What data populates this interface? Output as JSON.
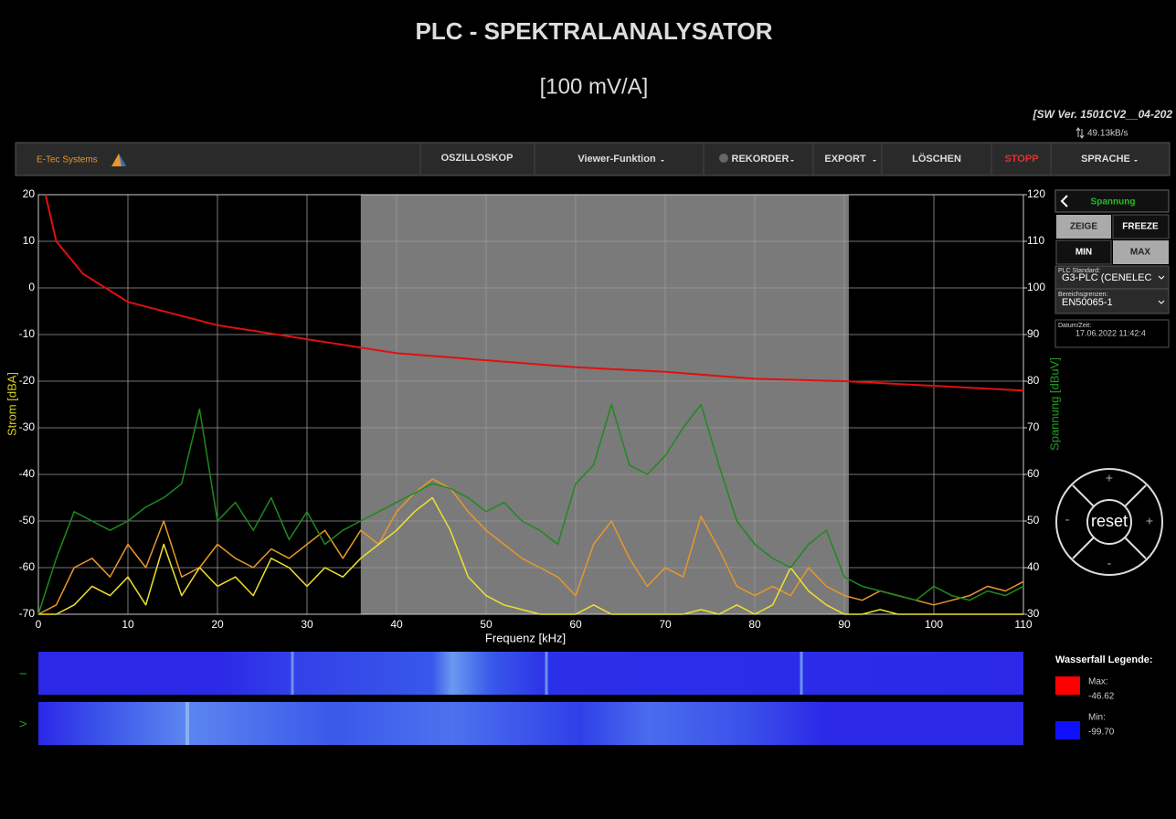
{
  "header": {
    "title": "PLC - SPEKTRALANALYSATOR",
    "subtitle": "[100 mV/A]",
    "version": "[SW Ver. 1501CV2__04-202",
    "rate": "49.13kB/s"
  },
  "nav": {
    "brand": "E-Tec Systems",
    "items": [
      "OSZILLOSKOP",
      "Viewer-Funktion",
      "REKORDER",
      "EXPORT",
      "LÖSCHEN",
      "STOPP",
      "SPRACHE"
    ]
  },
  "chart_data": {
    "type": "line",
    "xlabel": "Frequenz [kHz]",
    "ylabel": "Strom [dBA]",
    "y2label": "Spannung [dBuV]",
    "xlim": [
      0,
      110
    ],
    "ylim": [
      -70,
      20
    ],
    "y2lim": [
      30,
      120
    ],
    "xticks": [
      0,
      10,
      20,
      30,
      40,
      50,
      60,
      70,
      80,
      90,
      100,
      110
    ],
    "yticks": [
      -70,
      -60,
      -50,
      -40,
      -30,
      -20,
      -10,
      0,
      10,
      20
    ],
    "y2ticks": [
      30,
      40,
      50,
      60,
      70,
      80,
      90,
      100,
      110,
      120
    ],
    "grid": true,
    "highlight_range": [
      36,
      90.5
    ],
    "x": [
      0,
      2,
      4,
      6,
      8,
      10,
      12,
      14,
      16,
      18,
      20,
      22,
      24,
      26,
      28,
      30,
      32,
      34,
      36,
      38,
      40,
      42,
      44,
      46,
      48,
      50,
      52,
      54,
      56,
      58,
      60,
      62,
      64,
      66,
      68,
      70,
      72,
      74,
      76,
      78,
      80,
      82,
      84,
      86,
      88,
      90,
      92,
      94,
      96,
      98,
      100,
      102,
      104,
      106,
      108,
      110
    ],
    "series": [
      {
        "color": "#e8972a",
        "values": [
          -70,
          -68,
          -60,
          -58,
          -62,
          -55,
          -60,
          -50,
          -62,
          -60,
          -55,
          -58,
          -60,
          -56,
          -58,
          -55,
          -52,
          -58,
          -52,
          -55,
          -48,
          -44,
          -41,
          -43,
          -48,
          -52,
          -55,
          -58,
          -60,
          -62,
          -66,
          -55,
          -50,
          -58,
          -64,
          -60,
          -62,
          -49,
          -56,
          -64,
          -66,
          -64,
          -66,
          -60,
          -64,
          -66,
          -67,
          -65,
          -66,
          -67,
          -68,
          -67,
          -66,
          -64,
          -65,
          -63
        ]
      },
      {
        "color": "#f0e030",
        "values": [
          -70,
          -70,
          -68,
          -64,
          -66,
          -62,
          -68,
          -55,
          -66,
          -60,
          -64,
          -62,
          -66,
          -58,
          -60,
          -64,
          -60,
          -62,
          -58,
          -55,
          -52,
          -48,
          -45,
          -52,
          -62,
          -66,
          -68,
          -69,
          -70,
          -70,
          -70,
          -68,
          -70,
          -70,
          -70,
          -70,
          -70,
          -69,
          -70,
          -68,
          -70,
          -68,
          -60,
          -65,
          -68,
          -70,
          -70,
          -69,
          -70,
          -70,
          -70,
          -70,
          -70,
          -70,
          -70,
          -70
        ]
      },
      {
        "color": "#1f8a1f",
        "axis": "y2",
        "values": [
          30,
          42,
          52,
          50,
          48,
          50,
          53,
          55,
          58,
          74,
          50,
          54,
          48,
          55,
          46,
          52,
          45,
          48,
          50,
          52,
          54,
          56,
          58,
          57,
          55,
          52,
          54,
          50,
          48,
          45,
          58,
          62,
          75,
          62,
          60,
          64,
          70,
          75,
          62,
          50,
          45,
          42,
          40,
          45,
          48,
          38,
          36,
          35,
          34,
          33,
          36,
          34,
          33,
          35,
          34,
          36
        ]
      },
      {
        "color": "#e01010",
        "axis": "y2",
        "x": [
          0.8,
          2,
          5,
          10,
          20,
          30,
          40,
          50,
          60,
          70,
          80,
          90,
          100,
          110
        ],
        "values": [
          120,
          110,
          103,
          97,
          92,
          89,
          86,
          84.5,
          83,
          82,
          80.5,
          80,
          79,
          78
        ]
      }
    ]
  },
  "panel": {
    "mode": "Spannung",
    "buttons": [
      "ZEIGE",
      "FREEZE",
      "MIN",
      "MAX"
    ],
    "plc_label": "PLC Standard:",
    "plc_value": "G3-PLC (CENELEC",
    "limit_label": "Bereichsgrenzen:",
    "limit_value": "EN50065-1",
    "date_label": "Datum/Zeit:",
    "date_value": "17.06.2022 11:42:4",
    "reset": "reset",
    "plus": "+",
    "minus": "-"
  },
  "waterfall": {
    "rows": [
      "I",
      "V"
    ],
    "legend_title": "Wasserfall Legende:",
    "max_label": "Max:",
    "max_value": "-46.62",
    "min_label": "Min:",
    "min_value": "-99.70"
  }
}
